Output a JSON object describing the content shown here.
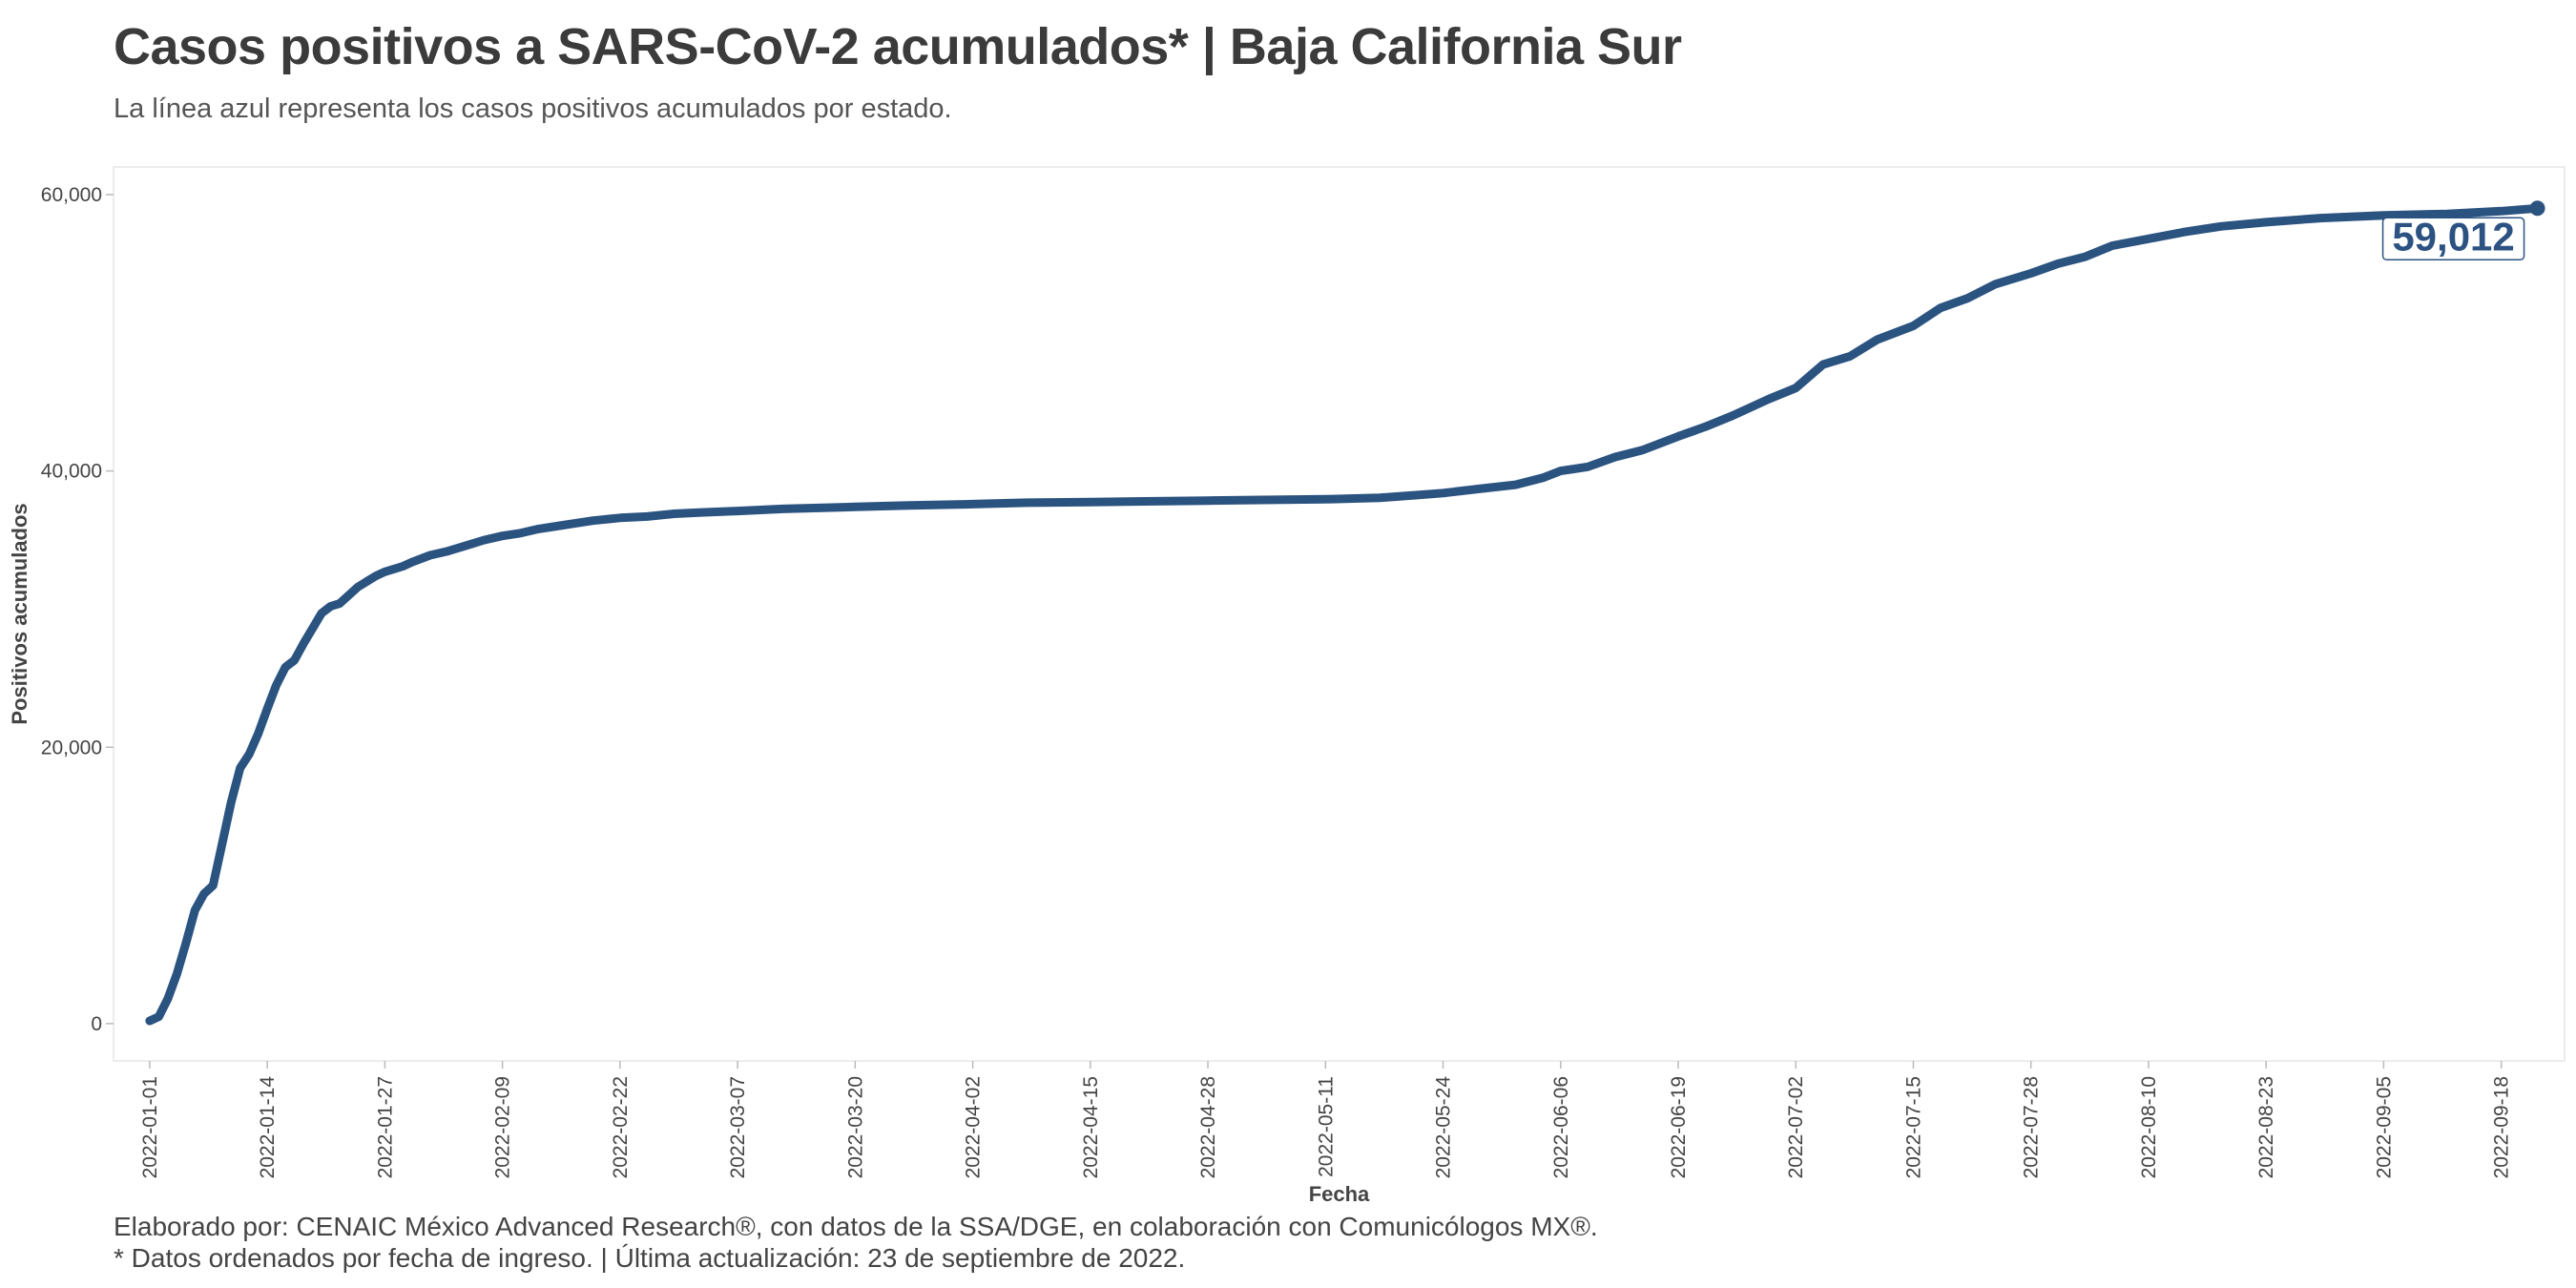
{
  "header": {
    "title": "Casos positivos a SARS-CoV-2 acumulados* | Baja California Sur",
    "subtitle": "La línea azul representa los casos positivos acumulados por estado."
  },
  "footer": {
    "credit": "Elaborado por: CENAIC México Advanced Research®, con datos de la SSA/DGE, en colaboración con Comunicólogos MX®.",
    "note": "* Datos ordenados por fecha de ingreso. | Última actualización: 23 de septiembre de 2022."
  },
  "colors": {
    "line": "#2b5380",
    "panel_border": "#e6e6e6",
    "label_text": "#2c5282"
  },
  "chart_data": {
    "type": "line",
    "title": "Casos positivos a SARS-CoV-2 acumulados* | Baja California Sur",
    "subtitle": "La línea azul representa los casos positivos acumulados por estado.",
    "xlabel": "Fecha",
    "ylabel": "Positivos acumulados",
    "grid": false,
    "ylim": [
      -2700,
      62000
    ],
    "xlim": [
      "2021-12-28",
      "2022-09-25"
    ],
    "x_ticks": [
      "2022-01-01",
      "2022-01-14",
      "2022-01-27",
      "2022-02-09",
      "2022-02-22",
      "2022-03-07",
      "2022-03-20",
      "2022-04-02",
      "2022-04-15",
      "2022-04-28",
      "2022-05-11",
      "2022-05-24",
      "2022-06-06",
      "2022-06-19",
      "2022-07-02",
      "2022-07-15",
      "2022-07-28",
      "2022-08-10",
      "2022-08-23",
      "2022-09-05",
      "2022-09-18"
    ],
    "y_ticks": [
      0,
      20000,
      40000,
      60000
    ],
    "y_tick_labels": [
      "0",
      "20,000",
      "40,000",
      "60,000"
    ],
    "end_label": "59,012",
    "series": [
      {
        "x": [
          "2022-01-01",
          "2022-01-02",
          "2022-01-03",
          "2022-01-04",
          "2022-01-05",
          "2022-01-06",
          "2022-01-07",
          "2022-01-08",
          "2022-01-09",
          "2022-01-10",
          "2022-01-11",
          "2022-01-12",
          "2022-01-13",
          "2022-01-14",
          "2022-01-15",
          "2022-01-16",
          "2022-01-17",
          "2022-01-18",
          "2022-01-19",
          "2022-01-20",
          "2022-01-21",
          "2022-01-22",
          "2022-01-23",
          "2022-01-24",
          "2022-01-25",
          "2022-01-26",
          "2022-01-27",
          "2022-01-28",
          "2022-01-29",
          "2022-01-30",
          "2022-02-01",
          "2022-02-03",
          "2022-02-05",
          "2022-02-07",
          "2022-02-09",
          "2022-02-11",
          "2022-02-13",
          "2022-02-15",
          "2022-02-17",
          "2022-02-19",
          "2022-02-22",
          "2022-02-25",
          "2022-02-28",
          "2022-03-03",
          "2022-03-07",
          "2022-03-12",
          "2022-03-20",
          "2022-03-26",
          "2022-04-02",
          "2022-04-08",
          "2022-04-15",
          "2022-04-21",
          "2022-04-28",
          "2022-05-04",
          "2022-05-11",
          "2022-05-17",
          "2022-05-21",
          "2022-05-24",
          "2022-05-28",
          "2022-06-01",
          "2022-06-04",
          "2022-06-06",
          "2022-06-09",
          "2022-06-12",
          "2022-06-15",
          "2022-06-19",
          "2022-06-22",
          "2022-06-25",
          "2022-06-29",
          "2022-07-02",
          "2022-07-05",
          "2022-07-08",
          "2022-07-11",
          "2022-07-15",
          "2022-07-18",
          "2022-07-21",
          "2022-07-24",
          "2022-07-28",
          "2022-07-31",
          "2022-08-03",
          "2022-08-06",
          "2022-08-10",
          "2022-08-14",
          "2022-08-18",
          "2022-08-23",
          "2022-08-29",
          "2022-09-05",
          "2022-09-12",
          "2022-09-18",
          "2022-09-22"
        ],
        "y": [
          200,
          500,
          1800,
          3600,
          5800,
          8200,
          9400,
          10000,
          13000,
          16000,
          18500,
          19500,
          21000,
          22800,
          24500,
          25800,
          26300,
          27500,
          28600,
          29700,
          30200,
          30400,
          31000,
          31600,
          32000,
          32400,
          32700,
          32900,
          33100,
          33400,
          33900,
          34200,
          34600,
          35000,
          35300,
          35500,
          35800,
          36000,
          36200,
          36400,
          36600,
          36700,
          36900,
          37000,
          37100,
          37250,
          37400,
          37500,
          37600,
          37700,
          37750,
          37800,
          37850,
          37900,
          37950,
          38050,
          38250,
          38400,
          38700,
          39000,
          39500,
          40000,
          40300,
          41000,
          41500,
          42500,
          43200,
          44000,
          45200,
          46000,
          47700,
          48300,
          49500,
          50500,
          51800,
          52500,
          53500,
          54300,
          55000,
          55500,
          56300,
          56800,
          57300,
          57700,
          58000,
          58300,
          58500,
          58600,
          58800,
          59012
        ]
      }
    ]
  }
}
